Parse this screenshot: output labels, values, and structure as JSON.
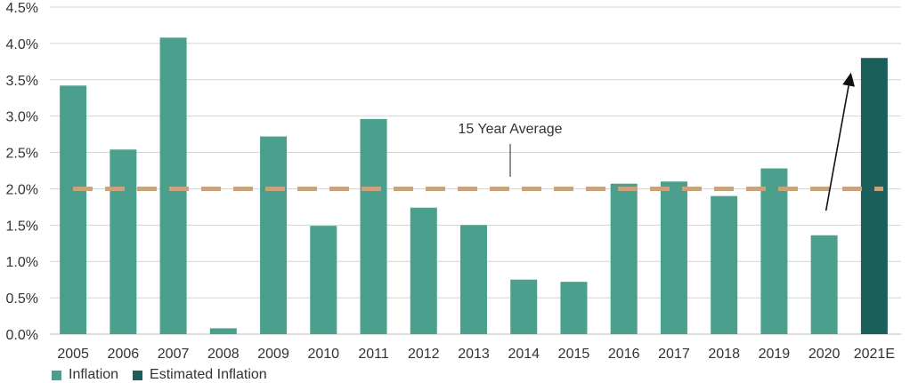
{
  "chart_data": {
    "type": "bar",
    "categories": [
      "2005",
      "2006",
      "2007",
      "2008",
      "2009",
      "2010",
      "2011",
      "2012",
      "2013",
      "2014",
      "2015",
      "2016",
      "2017",
      "2018",
      "2019",
      "2020",
      "2021E"
    ],
    "values": [
      3.42,
      2.54,
      4.08,
      0.08,
      2.72,
      1.49,
      2.96,
      1.74,
      1.5,
      0.75,
      0.72,
      2.07,
      2.1,
      1.9,
      2.28,
      1.36,
      3.8
    ],
    "estimated_flags": [
      false,
      false,
      false,
      false,
      false,
      false,
      false,
      false,
      false,
      false,
      false,
      false,
      false,
      false,
      false,
      false,
      true
    ],
    "ylim": [
      0,
      4.5
    ],
    "yticks": [
      "0.0%",
      "0.5%",
      "1.0%",
      "1.5%",
      "2.0%",
      "2.5%",
      "3.0%",
      "3.5%",
      "4.0%",
      "4.5%"
    ],
    "ytick_values": [
      0,
      0.5,
      1.0,
      1.5,
      2.0,
      2.5,
      3.0,
      3.5,
      4.0,
      4.5
    ],
    "grid": true,
    "average": {
      "label": "15 Year Average",
      "value": 2.0,
      "color": "#c9a27e"
    },
    "arrow": {
      "from_category": "2020",
      "to_category": "2021E",
      "from_value": 1.7,
      "to_value": 3.6
    },
    "legend": [
      {
        "label": "Inflation",
        "color": "#4aa08c"
      },
      {
        "label": "Estimated Inflation",
        "color": "#1a5f5a"
      }
    ],
    "legend_position": "bottom-left",
    "colors": {
      "inflation": "#4aa08c",
      "estimated": "#1a5f5a",
      "grid": "#d4d4d4",
      "text": "#333333"
    }
  }
}
